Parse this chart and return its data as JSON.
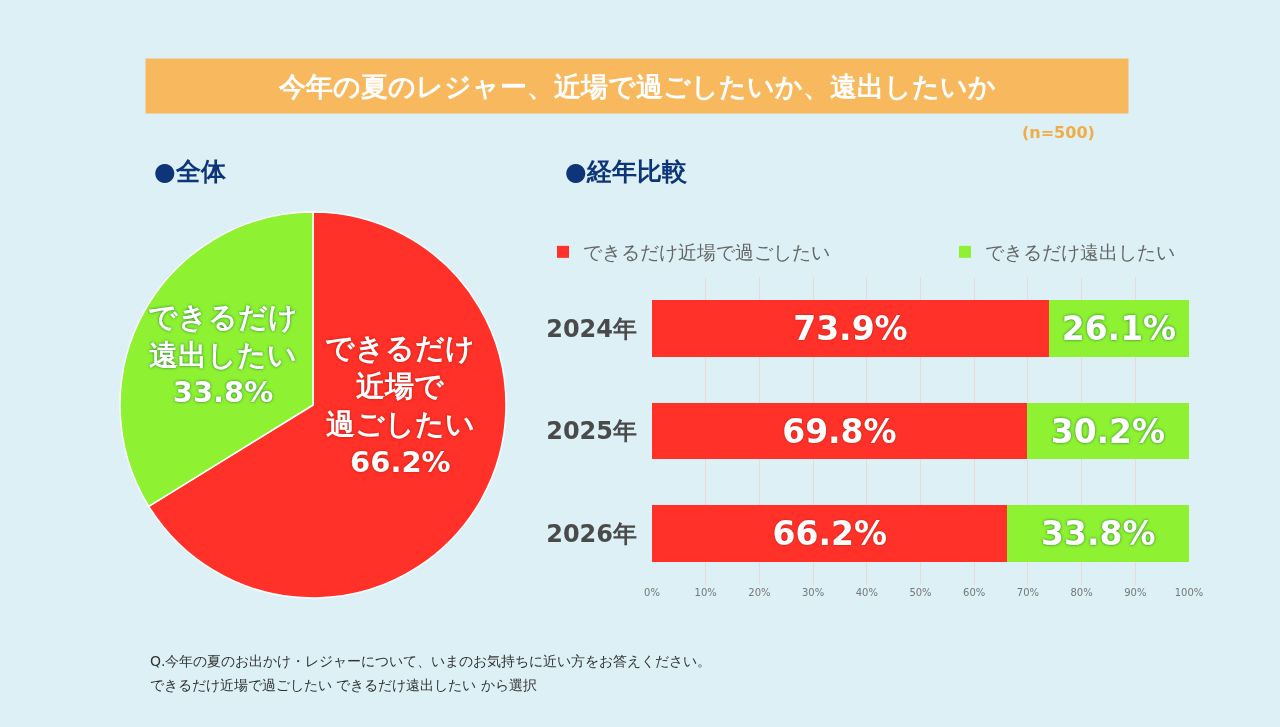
{
  "chart_data": [
    {
      "type": "other",
      "title": "今年の夏のレジャー、近場で過ごしたいか、遠出したいか",
      "subtitle": "(n=500)",
      "annotations": [
        "Q.今年の夏のお出かけ・レジャーについて、いまのお気持ちに近い方をお答えください。",
        "できるだけ近場で過ごしたい できるだけ遠出したい から選択"
      ]
    },
    {
      "type": "pie",
      "title": "●全体",
      "categories": [
        "できるだけ近場で過ごしたい",
        "できるだけ遠出したい"
      ],
      "values": [
        66.2,
        33.8
      ],
      "colors": [
        "#ff3128",
        "#8ef232"
      ],
      "value_labels": [
        "66.2%",
        "33.8%"
      ]
    },
    {
      "type": "bar",
      "title": "●経年比較",
      "orientation": "horizontal",
      "stacked": true,
      "categories": [
        "2024年",
        "2025年",
        "2026年"
      ],
      "series": [
        {
          "name": "できるだけ近場で過ごしたい",
          "color": "#ff3128",
          "values": [
            73.9,
            69.8,
            66.2
          ],
          "value_labels": [
            "73.9%",
            "69.8%",
            "66.2%"
          ]
        },
        {
          "name": "できるだけ遠出したい",
          "color": "#8ef232",
          "values": [
            26.1,
            30.2,
            33.8
          ],
          "value_labels": [
            "26.1%",
            "30.2%",
            "33.8%"
          ]
        }
      ],
      "xlim": [
        0,
        100
      ],
      "xticks": [
        {
          "value": 0,
          "label": "0%"
        },
        {
          "value": 10,
          "label": "10%"
        },
        {
          "value": 20,
          "label": "20%"
        },
        {
          "value": 30,
          "label": "30%"
        },
        {
          "value": 40,
          "label": "40%"
        },
        {
          "value": 50,
          "label": "50%"
        },
        {
          "value": 60,
          "label": "60%"
        },
        {
          "value": 70,
          "label": "70%"
        },
        {
          "value": 80,
          "label": "80%"
        },
        {
          "value": 90,
          "label": "90%"
        },
        {
          "value": 100,
          "label": "100%"
        }
      ],
      "grid": "x",
      "legend": "top"
    }
  ]
}
